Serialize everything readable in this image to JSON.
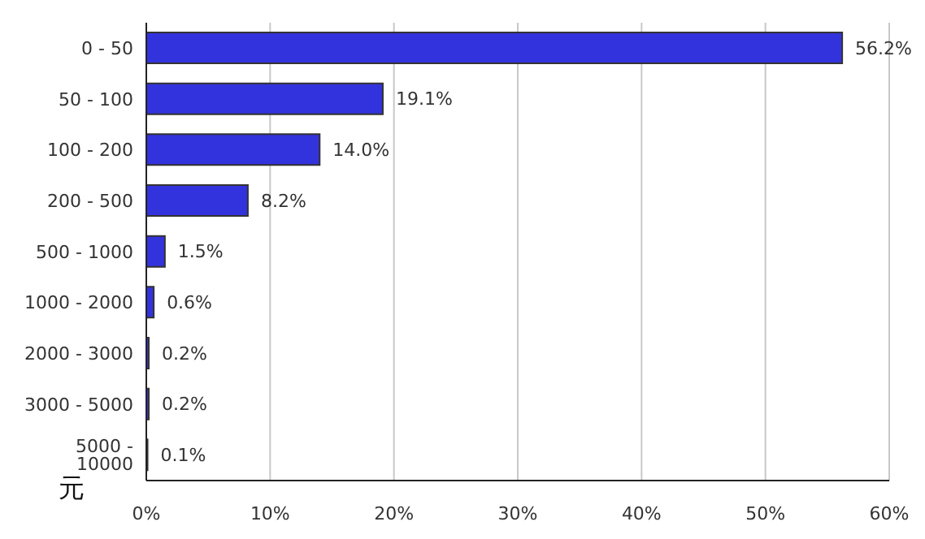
{
  "chart_data": {
    "type": "bar",
    "orientation": "horizontal",
    "ylabel": "元",
    "categories": [
      "0 - 50",
      "50 - 100",
      "100 - 200",
      "200 - 500",
      "500 - 1000",
      "1000 - 2000",
      "2000 - 3000",
      "3000 - 5000",
      "5000 - 10000"
    ],
    "values": [
      56.2,
      19.1,
      14.0,
      8.2,
      1.5,
      0.6,
      0.2,
      0.2,
      0.1
    ],
    "value_labels": [
      "56.2%",
      "19.1%",
      "14.0%",
      "8.2%",
      "1.5%",
      "0.6%",
      "0.2%",
      "0.2%",
      "0.1%"
    ],
    "color": "#3333dd",
    "xlim": [
      0,
      60
    ],
    "xticks": [
      {
        "value": 0,
        "label": "0%"
      },
      {
        "value": 10,
        "label": "10%"
      },
      {
        "value": 20,
        "label": "20%"
      },
      {
        "value": 30,
        "label": "30%"
      },
      {
        "value": 40,
        "label": "40%"
      },
      {
        "value": 50,
        "label": "50%"
      },
      {
        "value": 60,
        "label": "60%"
      }
    ],
    "grid": "x"
  }
}
